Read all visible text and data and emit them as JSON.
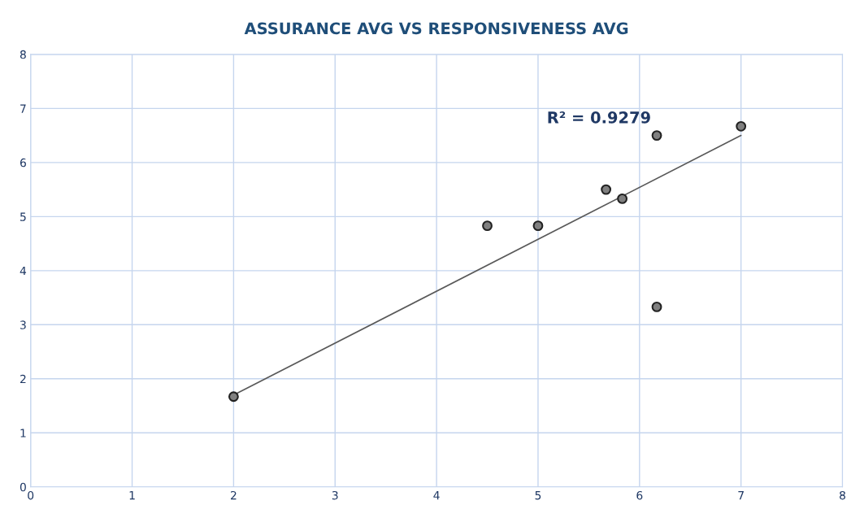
{
  "chart_data": {
    "type": "scatter",
    "title": "ASSURANCE AVG VS RESPONSIVENESS AVG",
    "x": [
      2,
      4.5,
      5,
      5.67,
      5.83,
      6.17,
      6.17,
      7
    ],
    "series": [
      {
        "color": "#808080",
        "marker": "circle",
        "values": [
          1.67,
          4.83,
          4.83,
          5.5,
          5.33,
          6.5,
          3.33,
          6.67
        ]
      },
      {
        "type": "line",
        "marker": "none",
        "color": "#595959",
        "x": [
          2,
          7
        ],
        "values": [
          1.7,
          6.5
        ]
      }
    ],
    "annotations": [
      {
        "text": "R² = 0.9279",
        "x": 6.17,
        "y": 6.5
      }
    ],
    "xlim": [
      0,
      8
    ],
    "xticks": [
      0,
      1,
      2,
      3,
      4,
      5,
      6,
      7,
      8
    ],
    "ylim": [
      0,
      8
    ],
    "yticks": [
      0,
      1,
      2,
      3,
      4,
      5,
      6,
      7,
      8
    ],
    "grid": true,
    "line_style": "solid"
  }
}
